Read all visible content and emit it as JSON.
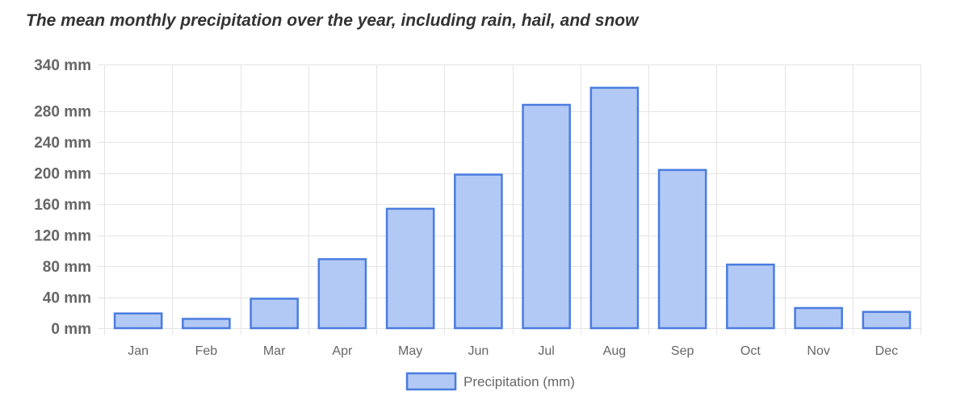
{
  "chart_data": {
    "type": "bar",
    "title": "The mean monthly precipitation over the year, including rain, hail, and snow",
    "categories": [
      "Jan",
      "Feb",
      "Mar",
      "Apr",
      "May",
      "Jun",
      "Jul",
      "Aug",
      "Sep",
      "Oct",
      "Nov",
      "Dec"
    ],
    "series": [
      {
        "name": "Precipitation (mm)",
        "values": [
          19,
          12,
          38,
          89,
          154,
          198,
          288,
          310,
          204,
          82,
          26,
          21
        ]
      }
    ],
    "ylim": [
      0,
      340
    ],
    "yticks": [
      {
        "value": 0,
        "label": "0 mm"
      },
      {
        "value": 40,
        "label": "40 mm"
      },
      {
        "value": 80,
        "label": "80 mm"
      },
      {
        "value": 120,
        "label": "120 mm"
      },
      {
        "value": 160,
        "label": "160 mm"
      },
      {
        "value": 200,
        "label": "200 mm"
      },
      {
        "value": 240,
        "label": "240 mm"
      },
      {
        "value": 280,
        "label": "280 mm"
      },
      {
        "value": 340,
        "label": "340 mm"
      }
    ],
    "grid": true,
    "legend_position": "bottom",
    "colors": {
      "bar_fill": "#b3c9f5",
      "bar_stroke": "#4a7de0",
      "grid": "#e4e4e4",
      "text": "#666666"
    }
  }
}
